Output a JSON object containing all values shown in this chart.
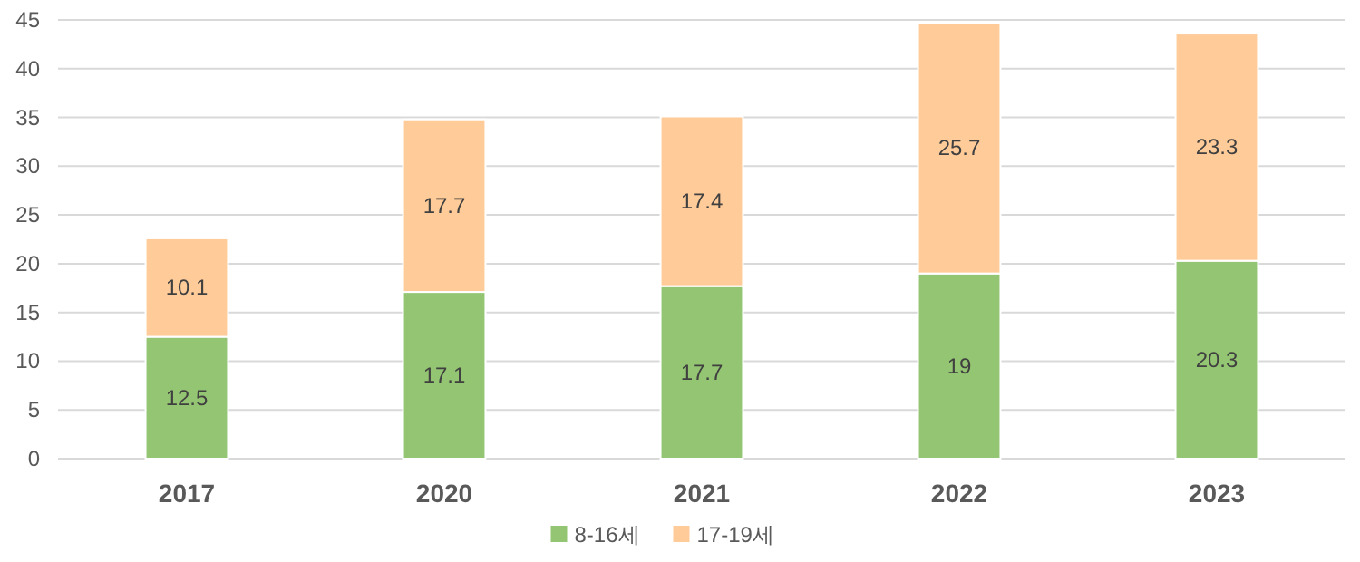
{
  "chart_data": {
    "type": "bar",
    "stacked": true,
    "categories": [
      "2017",
      "2020",
      "2021",
      "2022",
      "2023"
    ],
    "series": [
      {
        "name": "8-16세",
        "color": "#93c572",
        "values": [
          12.5,
          17.1,
          17.7,
          19,
          20.3
        ]
      },
      {
        "name": "17-19세",
        "color": "#ffcc99",
        "values": [
          10.1,
          17.7,
          17.4,
          25.7,
          23.3
        ]
      }
    ],
    "ylim": [
      0,
      45
    ],
    "yticks": [
      0,
      5,
      10,
      15,
      20,
      25,
      30,
      35,
      40,
      45
    ],
    "grid": "y",
    "legend": "bottom",
    "data_labels": true
  }
}
